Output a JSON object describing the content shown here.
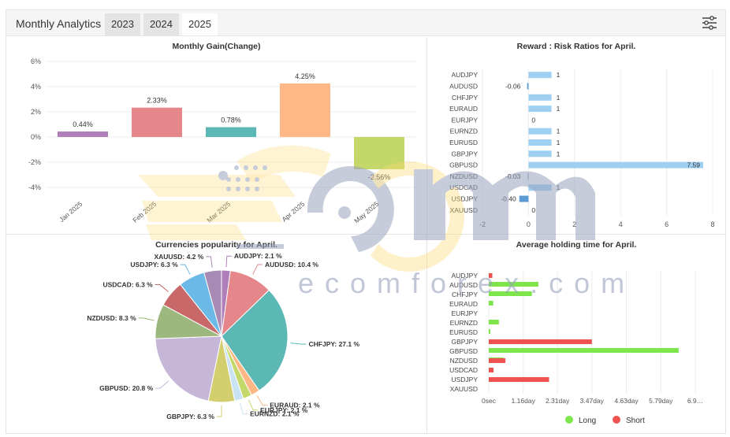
{
  "header": {
    "title": "Monthly Analytics",
    "tabs": [
      {
        "label": "2023",
        "active": false
      },
      {
        "label": "2024",
        "active": false
      },
      {
        "label": "2025",
        "active": true
      }
    ],
    "settings_icon": "sliders-icon"
  },
  "watermark": {
    "text": "ecomforex.com"
  },
  "chart_data": [
    {
      "id": "monthly_gain",
      "type": "bar",
      "title": "Monthly Gain(Change)",
      "categories": [
        "Jan 2025",
        "Feb 2025",
        "Mar 2025",
        "Apr 2025",
        "May 2025"
      ],
      "values": [
        0.44,
        2.33,
        0.78,
        4.25,
        -2.56
      ],
      "labels": [
        "0.44%",
        "2.33%",
        "0.78%",
        "4.25%",
        "-2.56%"
      ],
      "colors": [
        "#b07fb9",
        "#e4868a",
        "#5bb8b4",
        "#fdb885",
        "#c3d869"
      ],
      "ylim": [
        -4,
        6
      ],
      "yticks": [
        6,
        4,
        2,
        0,
        -2,
        -4
      ],
      "ytick_labels": [
        "6%",
        "4%",
        "2%",
        "0%",
        "-2%",
        "-4%"
      ]
    },
    {
      "id": "reward_risk",
      "type": "bar",
      "orientation": "horizontal",
      "title": "Reward : Risk Ratios for April.",
      "categories": [
        "AUDJPY",
        "AUDUSD",
        "CHFJPY",
        "EURAUD",
        "EURJPY",
        "EURNZD",
        "EURUSD",
        "GBPJPY",
        "GBPUSD",
        "NZDUSD",
        "USDCAD",
        "USDJPY",
        "XAUUSD"
      ],
      "values": [
        1,
        -0.06,
        1,
        1,
        0,
        1,
        1,
        1,
        7.59,
        -0.03,
        1,
        -0.4,
        0
      ],
      "labels": [
        "1",
        "-0.06",
        "1",
        "1",
        "0",
        "1",
        "1",
        "1",
        "7.59",
        "-0.03",
        "1",
        "-0.40",
        "0"
      ],
      "xlim": [
        -2,
        8
      ],
      "xticks": [
        -2,
        0,
        2,
        4,
        6,
        8
      ],
      "colors": {
        "positive": "#9fd0f2",
        "negative": "#5b9bd5"
      }
    },
    {
      "id": "currencies_popularity",
      "type": "pie",
      "title": "Currencies popularity for April.",
      "slices": [
        {
          "name": "AUDJPY",
          "value": 2.1,
          "label": "AUDJPY: 2.1 %",
          "color": "#b07fb9"
        },
        {
          "name": "AUDUSD",
          "value": 10.4,
          "label": "AUDUSD: 10.4 %",
          "color": "#e4868a"
        },
        {
          "name": "CHFJPY",
          "value": 27.1,
          "label": "CHFJPY: 27.1 %",
          "color": "#5bb8b4"
        },
        {
          "name": "EURAUD",
          "value": 2.1,
          "label": "EURAUD: 2.1 %",
          "color": "#fdb885"
        },
        {
          "name": "EURJPY",
          "value": 2.1,
          "label": "EURJPY: 2.1 %",
          "color": "#c3d869"
        },
        {
          "name": "EURNZD",
          "value": 2.1,
          "label": "EURNZD: 2.1 %",
          "color": "#c9e3f2"
        },
        {
          "name": "GBPJPY",
          "value": 6.3,
          "label": "GBPJPY: 6.3 %",
          "color": "#d4cf6e"
        },
        {
          "name": "GBPUSD",
          "value": 20.8,
          "label": "GBPUSD: 20.8 %",
          "color": "#c6b7d9"
        },
        {
          "name": "NZDUSD",
          "value": 8.3,
          "label": "NZDUSD: 8.3 %",
          "color": "#9db87e"
        },
        {
          "name": "USDCAD",
          "value": 6.3,
          "label": "USDCAD: 6.3 %",
          "color": "#c86868"
        },
        {
          "name": "USDJPY",
          "value": 6.3,
          "label": "USDJPY: 6.3 %",
          "color": "#6bb9e6"
        },
        {
          "name": "XAUUSD",
          "value": 4.2,
          "label": "XAUUSD: 4.2 %",
          "color": "#a88bb5"
        }
      ]
    },
    {
      "id": "average_holding",
      "type": "bar",
      "orientation": "horizontal",
      "title": "Average holding time for April.",
      "categories": [
        "AUDJPY",
        "AUDUSD",
        "CHFJPY",
        "EURAUD",
        "EURJPY",
        "EURNZD",
        "EURUSD",
        "GBPJPY",
        "GBPUSD",
        "NZDUSD",
        "USDCAD",
        "USDJPY",
        "XAUUSD"
      ],
      "xlim": [
        0,
        6.95
      ],
      "xticks": [
        0,
        1.16,
        2.31,
        3.47,
        4.63,
        5.79,
        6.95
      ],
      "xtick_labels": [
        "0sec",
        "1.16day",
        "2.31day",
        "3.47day",
        "4.63day",
        "5.79day",
        "6.9…"
      ],
      "series": [
        {
          "name": "Long",
          "color": "#7ee64a",
          "values": [
            0,
            1.67,
            1.45,
            0.15,
            0,
            0.34,
            0.05,
            0,
            6.39,
            0.5,
            0,
            0,
            0
          ]
        },
        {
          "name": "Short",
          "color": "#f05252",
          "values": [
            0.12,
            0,
            0,
            0,
            0,
            0,
            0,
            3.47,
            0,
            0.56,
            0.16,
            2.03,
            0
          ]
        }
      ],
      "legend_position": "bottom"
    }
  ]
}
